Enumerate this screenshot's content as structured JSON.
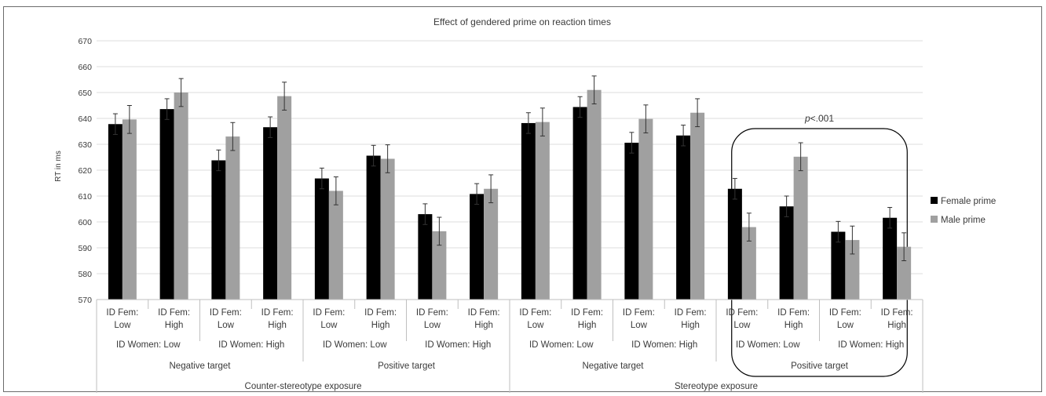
{
  "chart_data": {
    "type": "bar",
    "title": "Effect of gendered prime on reaction times",
    "ylabel": "RT in ms",
    "ylim": [
      570,
      670
    ],
    "yticks": [
      570,
      580,
      590,
      600,
      610,
      620,
      630,
      640,
      650,
      660,
      670
    ],
    "grid": true,
    "legend_position": "right",
    "categories": [
      [
        "ID Fem:",
        "Low"
      ],
      [
        "ID Fem:",
        "High"
      ],
      [
        "ID Fem:",
        "Low"
      ],
      [
        "ID Fem:",
        "High"
      ],
      [
        "ID Fem:",
        "Low"
      ],
      [
        "ID Fem:",
        "High"
      ],
      [
        "ID Fem:",
        "Low"
      ],
      [
        "ID Fem:",
        "High"
      ],
      [
        "ID Fem:",
        "Low"
      ],
      [
        "ID Fem:",
        "High"
      ],
      [
        "ID Fem:",
        "Low"
      ],
      [
        "ID Fem:",
        "High"
      ],
      [
        "ID Fem:",
        "Low"
      ],
      [
        "ID Fem:",
        "High"
      ],
      [
        "ID Fem:",
        "Low"
      ],
      [
        "ID Fem:",
        "High"
      ]
    ],
    "level2": [
      "ID Women: Low",
      "ID Women: High",
      "ID Women: Low",
      "ID Women: High",
      "ID Women: Low",
      "ID Women: High",
      "ID Women: Low",
      "ID Women: High"
    ],
    "level3": [
      "Negative target",
      "Positive target",
      "Negative target",
      "Positive target"
    ],
    "level4": [
      "Counter-stereotype exposure",
      "Stereotype exposure"
    ],
    "series": [
      {
        "name": "Female prime",
        "color": "#000000",
        "values": [
          637.8,
          643.6,
          623.8,
          636.6,
          616.8,
          625.6,
          603.0,
          610.8,
          638.2,
          644.4,
          630.6,
          633.4,
          612.8,
          606.0,
          596.2,
          601.6
        ],
        "errors": [
          4.0,
          4.0,
          4.0,
          4.0,
          4.0,
          4.0,
          4.0,
          4.0,
          4.0,
          4.0,
          4.0,
          4.0,
          4.0,
          4.0,
          4.0,
          4.0
        ]
      },
      {
        "name": "Male prime",
        "color": "#a0a0a0",
        "values": [
          639.6,
          650.0,
          633.0,
          648.6,
          612.0,
          624.4,
          596.4,
          612.8,
          638.6,
          651.0,
          639.8,
          642.2,
          598.0,
          625.2,
          593.0,
          590.4
        ],
        "errors": [
          5.4,
          5.4,
          5.4,
          5.4,
          5.4,
          5.4,
          5.4,
          5.4,
          5.4,
          5.4,
          5.4,
          5.4,
          5.4,
          5.4,
          5.4,
          5.4
        ]
      }
    ],
    "annotations": [
      {
        "text_prefix": "p",
        "text_suffix": "<.001",
        "highlighted_group": "Stereotype exposure / Positive target"
      }
    ]
  }
}
